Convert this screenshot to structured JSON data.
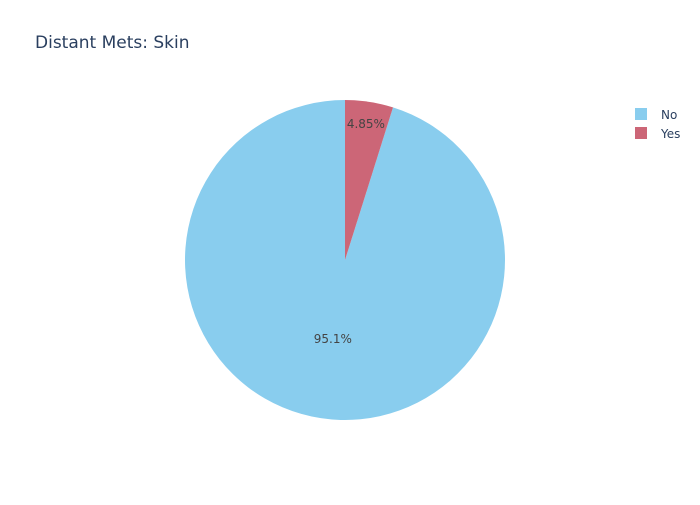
{
  "chart_data": {
    "type": "pie",
    "title": "Distant Mets: Skin",
    "slices": [
      {
        "label": "No",
        "percent": 95.15,
        "percent_label": "95.1%",
        "color": "#89cdee"
      },
      {
        "label": "Yes",
        "percent": 4.85,
        "percent_label": "4.85%",
        "color": "#cc6677"
      }
    ],
    "legend": {
      "position": "top-right",
      "entries": [
        "No",
        "Yes"
      ]
    },
    "direction": "counterclockwise",
    "start": "top"
  }
}
